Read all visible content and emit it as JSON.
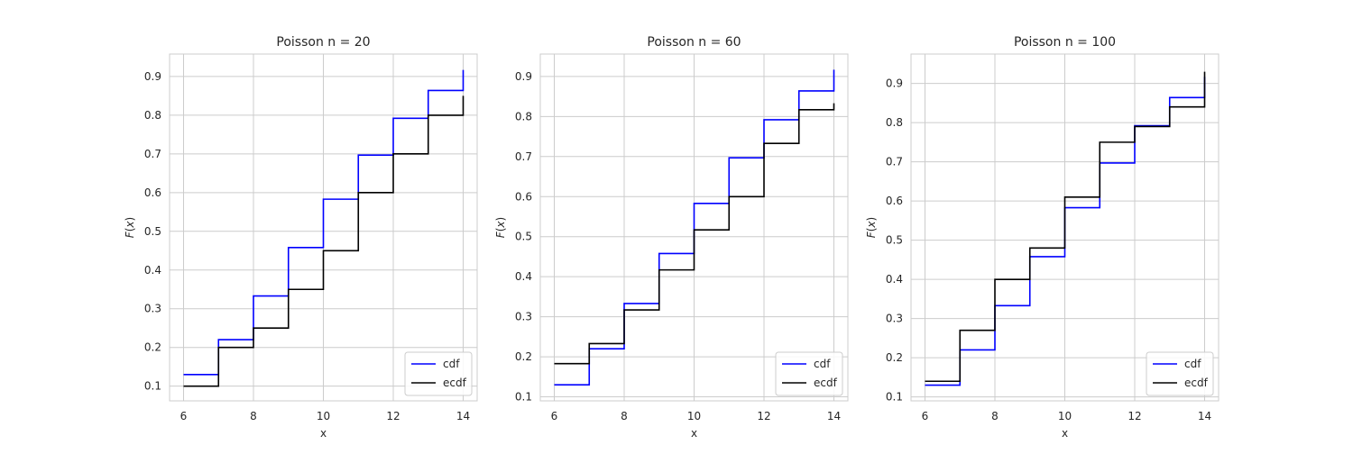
{
  "chart_data": [
    {
      "type": "line",
      "title": "Poisson n = 20",
      "xlabel": "x",
      "ylabel": "F(x)",
      "xlim": [
        5.6,
        14.4
      ],
      "ylim": [
        0.062,
        0.958
      ],
      "xticks": [
        6,
        8,
        10,
        12,
        14
      ],
      "yticks": [
        0.1,
        0.2,
        0.3,
        0.4,
        0.5,
        0.6,
        0.7,
        0.8,
        0.9
      ],
      "grid": true,
      "legend_position": "lower-right",
      "series": [
        {
          "name": "cdf",
          "color": "#0000ff",
          "x": [
            6,
            7,
            8,
            9,
            10,
            11,
            12,
            13,
            14
          ],
          "y": [
            0.13,
            0.22,
            0.333,
            0.458,
            0.583,
            0.697,
            0.792,
            0.864,
            0.917
          ]
        },
        {
          "name": "ecdf",
          "color": "#000000",
          "x": [
            6,
            7,
            8,
            9,
            10,
            11,
            12,
            13,
            14
          ],
          "y": [
            0.1,
            0.2,
            0.25,
            0.35,
            0.45,
            0.6,
            0.7,
            0.8,
            0.85
          ]
        }
      ]
    },
    {
      "type": "line",
      "title": "Poisson n = 60",
      "xlabel": "x",
      "ylabel": "F(x)",
      "xlim": [
        5.6,
        14.4
      ],
      "ylim": [
        0.09,
        0.956
      ],
      "xticks": [
        6,
        8,
        10,
        12,
        14
      ],
      "yticks": [
        0.1,
        0.2,
        0.3,
        0.4,
        0.5,
        0.6,
        0.7,
        0.8,
        0.9
      ],
      "grid": true,
      "legend_position": "lower-right",
      "series": [
        {
          "name": "cdf",
          "color": "#0000ff",
          "x": [
            6,
            7,
            8,
            9,
            10,
            11,
            12,
            13,
            14
          ],
          "y": [
            0.13,
            0.22,
            0.333,
            0.458,
            0.583,
            0.697,
            0.792,
            0.864,
            0.917
          ]
        },
        {
          "name": "ecdf",
          "color": "#000000",
          "x": [
            6,
            7,
            8,
            9,
            10,
            11,
            12,
            13,
            14
          ],
          "y": [
            0.183,
            0.233,
            0.317,
            0.417,
            0.517,
            0.6,
            0.733,
            0.817,
            0.833
          ]
        }
      ]
    },
    {
      "type": "line",
      "title": "Poisson n = 100",
      "xlabel": "x",
      "ylabel": "F(x)",
      "xlim": [
        5.6,
        14.4
      ],
      "ylim": [
        0.09,
        0.975
      ],
      "xticks": [
        6,
        8,
        10,
        12,
        14
      ],
      "yticks": [
        0.1,
        0.2,
        0.3,
        0.4,
        0.5,
        0.6,
        0.7,
        0.8,
        0.9
      ],
      "grid": true,
      "legend_position": "lower-right",
      "series": [
        {
          "name": "cdf",
          "color": "#0000ff",
          "x": [
            6,
            7,
            8,
            9,
            10,
            11,
            12,
            13,
            14
          ],
          "y": [
            0.13,
            0.22,
            0.333,
            0.458,
            0.583,
            0.697,
            0.792,
            0.864,
            0.917
          ]
        },
        {
          "name": "ecdf",
          "color": "#000000",
          "x": [
            6,
            7,
            8,
            9,
            10,
            11,
            12,
            13,
            14
          ],
          "y": [
            0.14,
            0.27,
            0.4,
            0.48,
            0.61,
            0.75,
            0.79,
            0.84,
            0.93
          ]
        }
      ]
    }
  ]
}
